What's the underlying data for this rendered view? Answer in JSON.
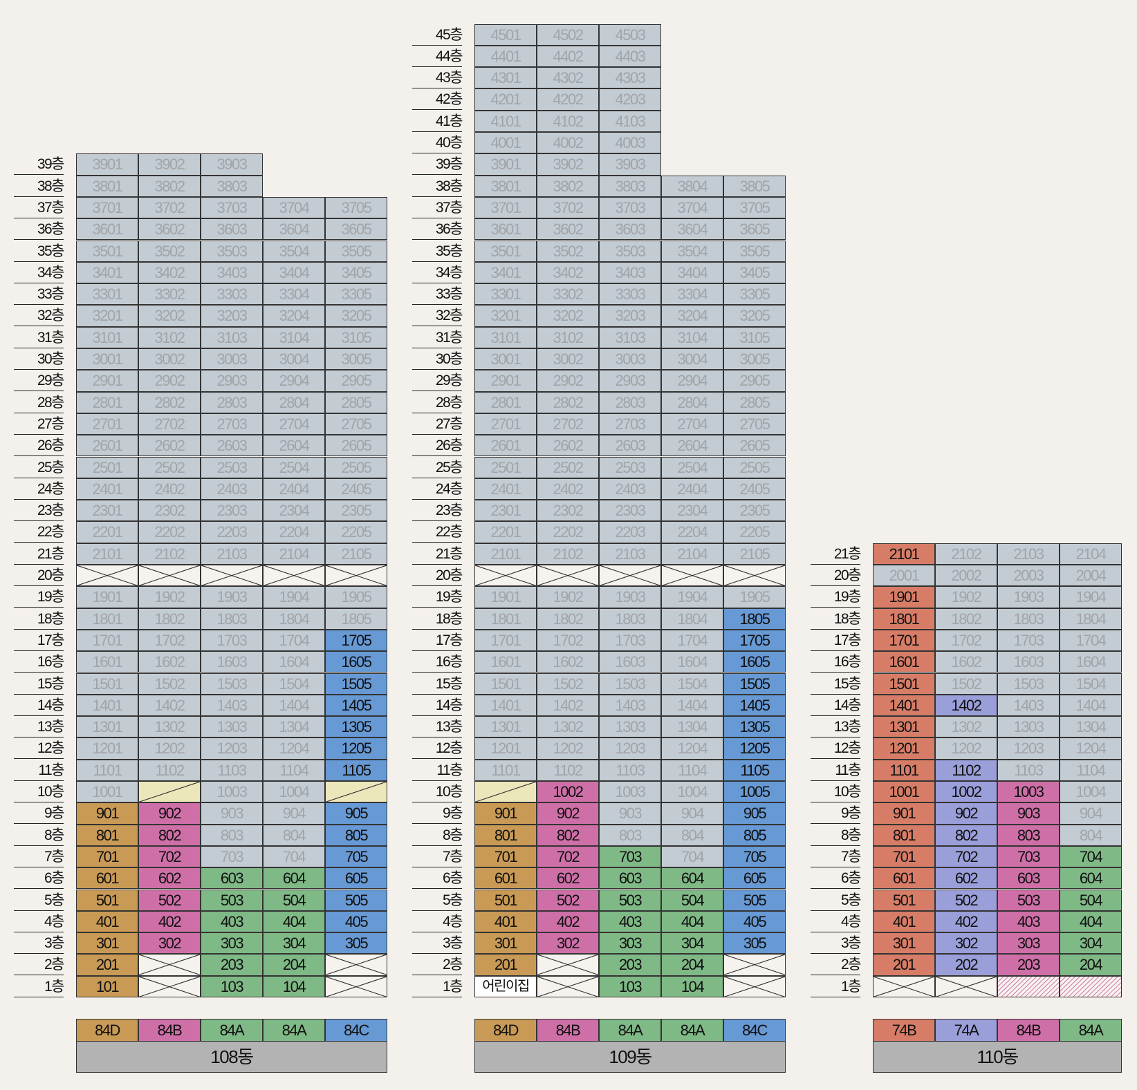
{
  "colors": {
    "default": "#c3ccd3",
    "default_text": "#a0a5aa",
    "84D": "#c99a55",
    "84B": "#cf6fa8",
    "84A": "#7fb986",
    "84C": "#6799d4",
    "74B": "#d77d67",
    "74A": "#9a9ed9",
    "yellow": "#ece7bb",
    "none": "#f6f3ee"
  },
  "buildings": [
    {
      "name": "108동",
      "floors": 39,
      "units": 5,
      "legend": [
        "84D",
        "84B",
        "84A",
        "84A",
        "84C"
      ],
      "floor_units": {
        "38": 3,
        "39": 3
      },
      "special": {
        "1": [
          [
            "t84D",
            "101"
          ],
          [
            "x",
            ""
          ],
          [
            "t84A",
            "103"
          ],
          [
            "t84A",
            "104"
          ],
          [
            "x",
            ""
          ]
        ],
        "2": [
          [
            "t84D",
            "201"
          ],
          [
            "x",
            ""
          ],
          [
            "t84A",
            "203"
          ],
          [
            "t84A",
            "204"
          ],
          [
            "x",
            ""
          ]
        ],
        "3": [
          [
            "t84D",
            "301"
          ],
          [
            "t84B",
            "302"
          ],
          [
            "t84A",
            "303"
          ],
          [
            "t84A",
            "304"
          ],
          [
            "t84C",
            "305"
          ]
        ],
        "4": [
          [
            "t84D",
            "401"
          ],
          [
            "t84B",
            "402"
          ],
          [
            "t84A",
            "403"
          ],
          [
            "t84A",
            "404"
          ],
          [
            "t84C",
            "405"
          ]
        ],
        "5": [
          [
            "t84D",
            "501"
          ],
          [
            "t84B",
            "502"
          ],
          [
            "t84A",
            "503"
          ],
          [
            "t84A",
            "504"
          ],
          [
            "t84C",
            "505"
          ]
        ],
        "6": [
          [
            "t84D",
            "601"
          ],
          [
            "t84B",
            "602"
          ],
          [
            "t84A",
            "603"
          ],
          [
            "t84A",
            "604"
          ],
          [
            "t84C",
            "605"
          ]
        ],
        "7": [
          [
            "t84D",
            "701"
          ],
          [
            "t84B",
            "702"
          ],
          [
            "d",
            "703"
          ],
          [
            "d",
            "704"
          ],
          [
            "t84C",
            "705"
          ]
        ],
        "8": [
          [
            "t84D",
            "801"
          ],
          [
            "t84B",
            "802"
          ],
          [
            "d",
            "803"
          ],
          [
            "d",
            "804"
          ],
          [
            "t84C",
            "805"
          ]
        ],
        "9": [
          [
            "t84D",
            "901"
          ],
          [
            "t84B",
            "902"
          ],
          [
            "d",
            "903"
          ],
          [
            "d",
            "904"
          ],
          [
            "t84C",
            "905"
          ]
        ],
        "10": [
          [
            "d",
            "1001"
          ],
          [
            "y",
            ""
          ],
          [
            "d",
            "1003"
          ],
          [
            "d",
            "1004"
          ],
          [
            "y",
            ""
          ]
        ],
        "11": [
          [
            "d",
            "1101"
          ],
          [
            "d",
            "1102"
          ],
          [
            "d",
            "1103"
          ],
          [
            "d",
            "1104"
          ],
          [
            "t84C",
            "1105"
          ]
        ],
        "12": [
          [
            "d",
            "1201"
          ],
          [
            "d",
            "1202"
          ],
          [
            "d",
            "1203"
          ],
          [
            "d",
            "1204"
          ],
          [
            "t84C",
            "1205"
          ]
        ],
        "13": [
          [
            "d",
            "1301"
          ],
          [
            "d",
            "1302"
          ],
          [
            "d",
            "1303"
          ],
          [
            "d",
            "1304"
          ],
          [
            "t84C",
            "1305"
          ]
        ],
        "14": [
          [
            "d",
            "1401"
          ],
          [
            "d",
            "1402"
          ],
          [
            "d",
            "1403"
          ],
          [
            "d",
            "1404"
          ],
          [
            "t84C",
            "1405"
          ]
        ],
        "15": [
          [
            "d",
            "1501"
          ],
          [
            "d",
            "1502"
          ],
          [
            "d",
            "1503"
          ],
          [
            "d",
            "1504"
          ],
          [
            "t84C",
            "1505"
          ]
        ],
        "16": [
          [
            "d",
            "1601"
          ],
          [
            "d",
            "1602"
          ],
          [
            "d",
            "1603"
          ],
          [
            "d",
            "1604"
          ],
          [
            "t84C",
            "1605"
          ]
        ],
        "17": [
          [
            "d",
            "1701"
          ],
          [
            "d",
            "1702"
          ],
          [
            "d",
            "1703"
          ],
          [
            "d",
            "1704"
          ],
          [
            "t84C",
            "1705"
          ]
        ],
        "20": [
          [
            "x",
            ""
          ],
          [
            "x",
            ""
          ],
          [
            "x",
            ""
          ],
          [
            "x",
            ""
          ],
          [
            "x",
            ""
          ]
        ]
      }
    },
    {
      "name": "109동",
      "floors": 45,
      "units": 5,
      "legend": [
        "84D",
        "84B",
        "84A",
        "84A",
        "84C"
      ],
      "floor_units": {
        "39": 3,
        "40": 3,
        "41": 3,
        "42": 3,
        "43": 3,
        "44": 3,
        "45": 3
      },
      "special": {
        "1": [
          [
            "w",
            "어린이집"
          ],
          [
            "x",
            ""
          ],
          [
            "t84A",
            "103"
          ],
          [
            "t84A",
            "104"
          ],
          [
            "x",
            ""
          ]
        ],
        "2": [
          [
            "t84D",
            "201"
          ],
          [
            "x",
            ""
          ],
          [
            "t84A",
            "203"
          ],
          [
            "t84A",
            "204"
          ],
          [
            "x",
            ""
          ]
        ],
        "3": [
          [
            "t84D",
            "301"
          ],
          [
            "t84B",
            "302"
          ],
          [
            "t84A",
            "303"
          ],
          [
            "t84A",
            "304"
          ],
          [
            "t84C",
            "305"
          ]
        ],
        "4": [
          [
            "t84D",
            "401"
          ],
          [
            "t84B",
            "402"
          ],
          [
            "t84A",
            "403"
          ],
          [
            "t84A",
            "404"
          ],
          [
            "t84C",
            "405"
          ]
        ],
        "5": [
          [
            "t84D",
            "501"
          ],
          [
            "t84B",
            "502"
          ],
          [
            "t84A",
            "503"
          ],
          [
            "t84A",
            "504"
          ],
          [
            "t84C",
            "505"
          ]
        ],
        "6": [
          [
            "t84D",
            "601"
          ],
          [
            "t84B",
            "602"
          ],
          [
            "t84A",
            "603"
          ],
          [
            "t84A",
            "604"
          ],
          [
            "t84C",
            "605"
          ]
        ],
        "7": [
          [
            "t84D",
            "701"
          ],
          [
            "t84B",
            "702"
          ],
          [
            "t84A",
            "703"
          ],
          [
            "d",
            "704"
          ],
          [
            "t84C",
            "705"
          ]
        ],
        "8": [
          [
            "t84D",
            "801"
          ],
          [
            "t84B",
            "802"
          ],
          [
            "d",
            "803"
          ],
          [
            "d",
            "804"
          ],
          [
            "t84C",
            "805"
          ]
        ],
        "9": [
          [
            "t84D",
            "901"
          ],
          [
            "t84B",
            "902"
          ],
          [
            "d",
            "903"
          ],
          [
            "d",
            "904"
          ],
          [
            "t84C",
            "905"
          ]
        ],
        "10": [
          [
            "y",
            ""
          ],
          [
            "t84B",
            "1002"
          ],
          [
            "d",
            "1003"
          ],
          [
            "d",
            "1004"
          ],
          [
            "t84C",
            "1005"
          ]
        ],
        "11": [
          [
            "d",
            "1101"
          ],
          [
            "d",
            "1102"
          ],
          [
            "d",
            "1103"
          ],
          [
            "d",
            "1104"
          ],
          [
            "t84C",
            "1105"
          ]
        ],
        "12": [
          [
            "d",
            "1201"
          ],
          [
            "d",
            "1202"
          ],
          [
            "d",
            "1203"
          ],
          [
            "d",
            "1204"
          ],
          [
            "t84C",
            "1205"
          ]
        ],
        "13": [
          [
            "d",
            "1301"
          ],
          [
            "d",
            "1302"
          ],
          [
            "d",
            "1303"
          ],
          [
            "d",
            "1304"
          ],
          [
            "t84C",
            "1305"
          ]
        ],
        "14": [
          [
            "d",
            "1401"
          ],
          [
            "d",
            "1402"
          ],
          [
            "d",
            "1403"
          ],
          [
            "d",
            "1404"
          ],
          [
            "t84C",
            "1405"
          ]
        ],
        "15": [
          [
            "d",
            "1501"
          ],
          [
            "d",
            "1502"
          ],
          [
            "d",
            "1503"
          ],
          [
            "d",
            "1504"
          ],
          [
            "t84C",
            "1505"
          ]
        ],
        "16": [
          [
            "d",
            "1601"
          ],
          [
            "d",
            "1602"
          ],
          [
            "d",
            "1603"
          ],
          [
            "d",
            "1604"
          ],
          [
            "t84C",
            "1605"
          ]
        ],
        "17": [
          [
            "d",
            "1701"
          ],
          [
            "d",
            "1702"
          ],
          [
            "d",
            "1703"
          ],
          [
            "d",
            "1704"
          ],
          [
            "t84C",
            "1705"
          ]
        ],
        "18": [
          [
            "d",
            "1801"
          ],
          [
            "d",
            "1802"
          ],
          [
            "d",
            "1803"
          ],
          [
            "d",
            "1804"
          ],
          [
            "t84C",
            "1805"
          ]
        ],
        "20": [
          [
            "x",
            ""
          ],
          [
            "x",
            ""
          ],
          [
            "x",
            ""
          ],
          [
            "x",
            ""
          ],
          [
            "x",
            ""
          ]
        ]
      }
    },
    {
      "name": "110동",
      "floors": 21,
      "units": 4,
      "legend": [
        "74B",
        "74A",
        "84B",
        "84A"
      ],
      "floor_units": {},
      "special": {
        "1": [
          [
            "x",
            ""
          ],
          [
            "x",
            ""
          ],
          [
            "h",
            ""
          ],
          [
            "h",
            ""
          ]
        ],
        "2": [
          [
            "t74B",
            "201"
          ],
          [
            "t74A",
            "202"
          ],
          [
            "t84B",
            "203"
          ],
          [
            "t84A",
            "204"
          ]
        ],
        "3": [
          [
            "t74B",
            "301"
          ],
          [
            "t74A",
            "302"
          ],
          [
            "t84B",
            "303"
          ],
          [
            "t84A",
            "304"
          ]
        ],
        "4": [
          [
            "t74B",
            "401"
          ],
          [
            "t74A",
            "402"
          ],
          [
            "t84B",
            "403"
          ],
          [
            "t84A",
            "404"
          ]
        ],
        "5": [
          [
            "t74B",
            "501"
          ],
          [
            "t74A",
            "502"
          ],
          [
            "t84B",
            "503"
          ],
          [
            "t84A",
            "504"
          ]
        ],
        "6": [
          [
            "t74B",
            "601"
          ],
          [
            "t74A",
            "602"
          ],
          [
            "t84B",
            "603"
          ],
          [
            "t84A",
            "604"
          ]
        ],
        "7": [
          [
            "t74B",
            "701"
          ],
          [
            "t74A",
            "702"
          ],
          [
            "t84B",
            "703"
          ],
          [
            "t84A",
            "704"
          ]
        ],
        "8": [
          [
            "t74B",
            "801"
          ],
          [
            "t74A",
            "802"
          ],
          [
            "t84B",
            "803"
          ],
          [
            "d",
            "804"
          ]
        ],
        "9": [
          [
            "t74B",
            "901"
          ],
          [
            "t74A",
            "902"
          ],
          [
            "t84B",
            "903"
          ],
          [
            "d",
            "904"
          ]
        ],
        "10": [
          [
            "t74B",
            "1001"
          ],
          [
            "t74A",
            "1002"
          ],
          [
            "t84B",
            "1003"
          ],
          [
            "d",
            "1004"
          ]
        ],
        "11": [
          [
            "t74B",
            "1101"
          ],
          [
            "t74A",
            "1102"
          ],
          [
            "d",
            "1103"
          ],
          [
            "d",
            "1104"
          ]
        ],
        "12": [
          [
            "t74B",
            "1201"
          ],
          [
            "d",
            "1202"
          ],
          [
            "d",
            "1203"
          ],
          [
            "d",
            "1204"
          ]
        ],
        "13": [
          [
            "t74B",
            "1301"
          ],
          [
            "d",
            "1302"
          ],
          [
            "d",
            "1303"
          ],
          [
            "d",
            "1304"
          ]
        ],
        "14": [
          [
            "t74B",
            "1401"
          ],
          [
            "t74A",
            "1402"
          ],
          [
            "d",
            "1403"
          ],
          [
            "d",
            "1404"
          ]
        ],
        "15": [
          [
            "t74B",
            "1501"
          ],
          [
            "d",
            "1502"
          ],
          [
            "d",
            "1503"
          ],
          [
            "d",
            "1504"
          ]
        ],
        "16": [
          [
            "t74B",
            "1601"
          ],
          [
            "d",
            "1602"
          ],
          [
            "d",
            "1603"
          ],
          [
            "d",
            "1604"
          ]
        ],
        "17": [
          [
            "t74B",
            "1701"
          ],
          [
            "d",
            "1702"
          ],
          [
            "d",
            "1703"
          ],
          [
            "d",
            "1704"
          ]
        ],
        "18": [
          [
            "t74B",
            "1801"
          ],
          [
            "d",
            "1802"
          ],
          [
            "d",
            "1803"
          ],
          [
            "d",
            "1804"
          ]
        ],
        "19": [
          [
            "t74B",
            "1901"
          ],
          [
            "d",
            "1902"
          ],
          [
            "d",
            "1903"
          ],
          [
            "d",
            "1904"
          ]
        ],
        "21": [
          [
            "t74B",
            "2101"
          ],
          [
            "d",
            "2102"
          ],
          [
            "d",
            "2103"
          ],
          [
            "d",
            "2104"
          ]
        ]
      }
    }
  ],
  "floor_suffix": "층"
}
